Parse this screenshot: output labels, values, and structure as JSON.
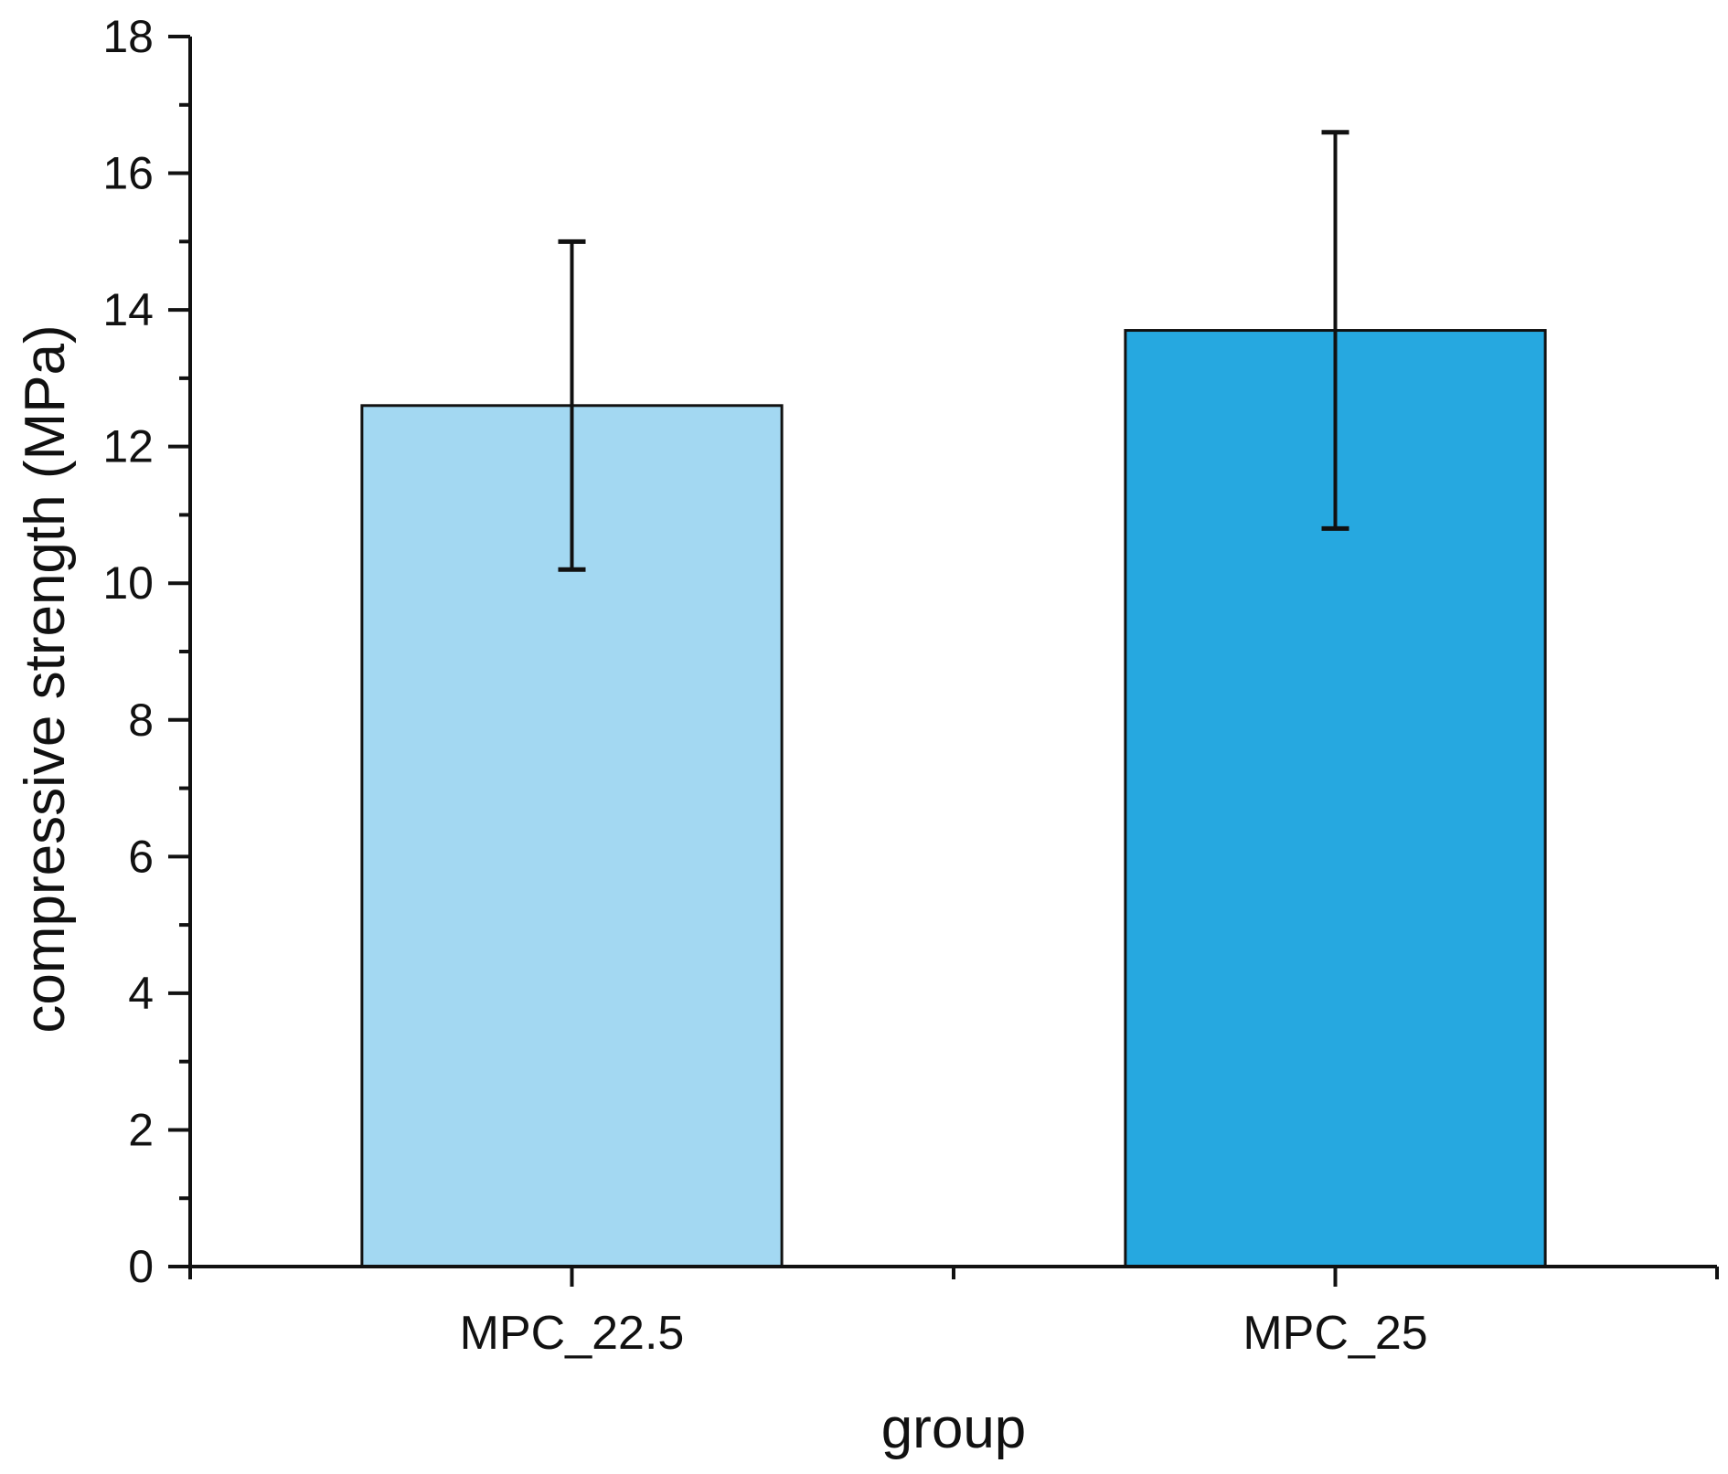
{
  "chart_data": {
    "type": "bar",
    "title": "",
    "xlabel": "group",
    "ylabel": "compressive strength (MPa)",
    "categories": [
      "MPC_22.5",
      "MPC_25"
    ],
    "values": [
      12.6,
      13.7
    ],
    "error_bars": [
      {
        "category": "MPC_22.5",
        "low": 10.2,
        "high": 15.0
      },
      {
        "category": "MPC_25",
        "low": 10.8,
        "high": 16.6
      }
    ],
    "ylim": [
      0,
      18
    ],
    "yticks": [
      "0",
      "2",
      "4",
      "6",
      "8",
      "10",
      "12",
      "14",
      "16",
      "18"
    ],
    "ytick_values": [
      0,
      2,
      4,
      6,
      8,
      10,
      12,
      14,
      16,
      18
    ],
    "minor_tick_step": 1,
    "grid": false,
    "bar_colors": [
      "#a3d8f2",
      "#26a8e0"
    ],
    "edge_color": "#111111"
  }
}
